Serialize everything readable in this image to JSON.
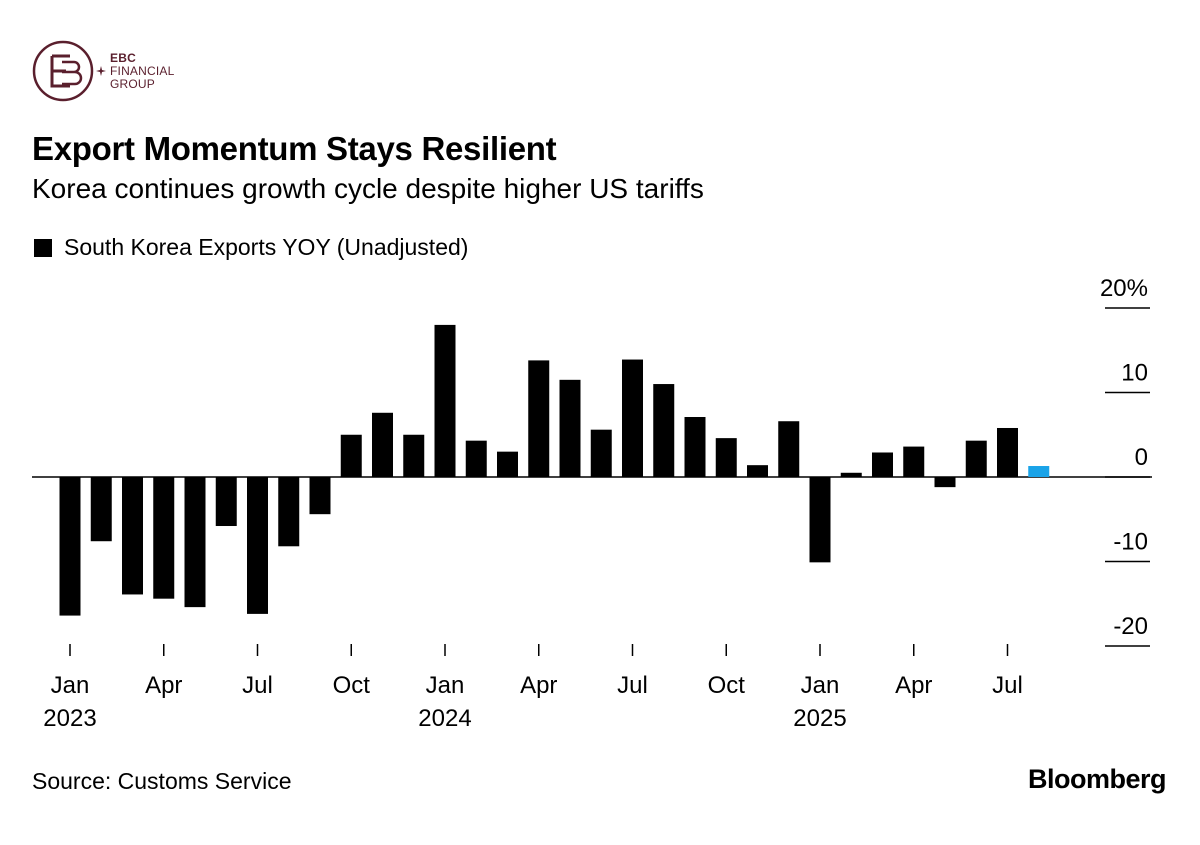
{
  "brand": {
    "logo_monogram": "EBC",
    "logo_line1": "EBC",
    "logo_line2": "FINANCIAL",
    "logo_line3": "GROUP",
    "accent": "#5a1f2d"
  },
  "footer": {
    "source": "Source: Customs Service",
    "publisher": "Bloomberg"
  },
  "chart_data": {
    "type": "bar",
    "title": "Export Momentum Stays Resilient",
    "subtitle": "Korea continues growth cycle despite higher US tariffs",
    "legend": [
      "South Korea Exports YOY (Unadjusted)"
    ],
    "xlabel": "",
    "ylabel": "",
    "ylim": [
      -20,
      20
    ],
    "y_ticks": [
      20,
      10,
      0,
      -10,
      -20
    ],
    "y_tick_labels": [
      "20%",
      "10",
      "0",
      "-10",
      "-20"
    ],
    "categories": [
      "Jan 2023",
      "Feb 2023",
      "Mar 2023",
      "Apr 2023",
      "May 2023",
      "Jun 2023",
      "Jul 2023",
      "Aug 2023",
      "Sep 2023",
      "Oct 2023",
      "Nov 2023",
      "Dec 2023",
      "Jan 2024",
      "Feb 2024",
      "Mar 2024",
      "Apr 2024",
      "May 2024",
      "Jun 2024",
      "Jul 2024",
      "Aug 2024",
      "Sep 2024",
      "Oct 2024",
      "Nov 2024",
      "Dec 2024",
      "Jan 2025",
      "Feb 2025",
      "Mar 2025",
      "Apr 2025",
      "May 2025",
      "Jun 2025",
      "Jul 2025",
      "Aug 2025"
    ],
    "series": [
      {
        "name": "South Korea Exports YOY (Unadjusted)",
        "color": "#000000",
        "highlight_color": "#1aa3e8",
        "highlight_index": 31,
        "values": [
          -16.4,
          -7.6,
          -13.9,
          -14.4,
          -15.4,
          -5.8,
          -16.2,
          -8.2,
          -4.4,
          5.0,
          7.6,
          5.0,
          18.0,
          4.3,
          3.0,
          13.8,
          11.5,
          5.6,
          13.9,
          11.0,
          7.1,
          4.6,
          1.4,
          6.6,
          -10.1,
          0.5,
          2.9,
          3.6,
          -1.2,
          4.3,
          5.8,
          1.3
        ]
      }
    ],
    "x_tick_labels": [
      {
        "index": 0,
        "label": "Jan",
        "year": "2023"
      },
      {
        "index": 3,
        "label": "Apr",
        "year": ""
      },
      {
        "index": 6,
        "label": "Jul",
        "year": ""
      },
      {
        "index": 9,
        "label": "Oct",
        "year": ""
      },
      {
        "index": 12,
        "label": "Jan",
        "year": "2024"
      },
      {
        "index": 15,
        "label": "Apr",
        "year": ""
      },
      {
        "index": 18,
        "label": "Jul",
        "year": ""
      },
      {
        "index": 21,
        "label": "Oct",
        "year": ""
      },
      {
        "index": 24,
        "label": "Jan",
        "year": "2025"
      },
      {
        "index": 27,
        "label": "Apr",
        "year": ""
      },
      {
        "index": 30,
        "label": "Jul",
        "year": ""
      }
    ]
  }
}
